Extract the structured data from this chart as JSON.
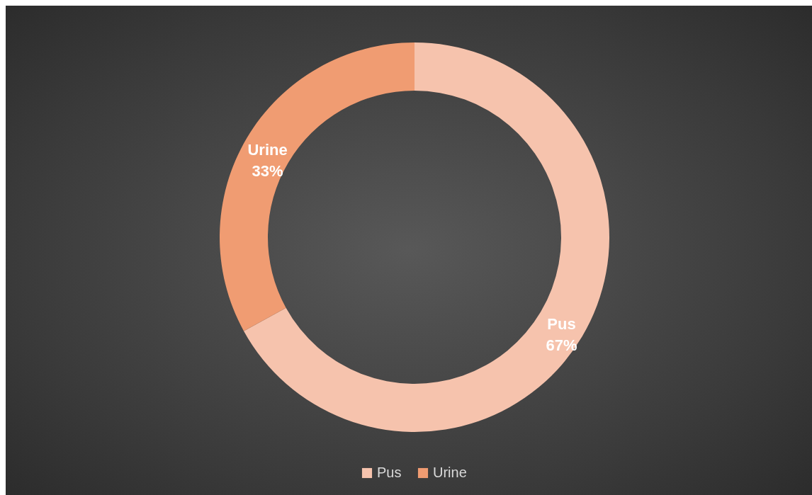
{
  "chart_data": {
    "type": "donut",
    "categories": [
      "Pus",
      "Urine"
    ],
    "values": [
      67,
      33
    ],
    "colors": [
      "#f6c3ad",
      "#f09c72"
    ],
    "value_labels": [
      "67%",
      "33%"
    ],
    "legend": "bottom"
  }
}
